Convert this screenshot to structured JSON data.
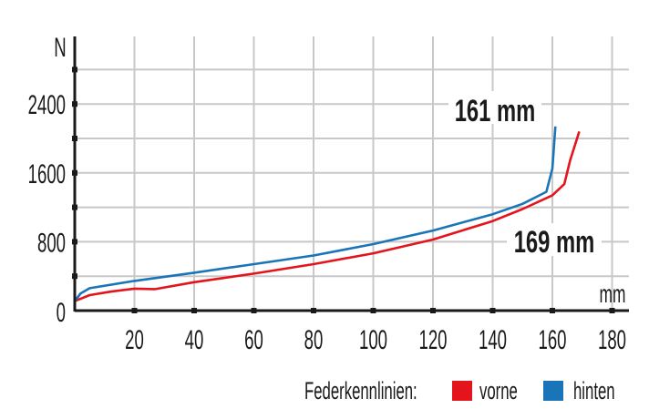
{
  "chart_data": {
    "type": "line",
    "title": "",
    "xlabel": "mm",
    "ylabel": "N",
    "xlim": [
      0,
      185
    ],
    "ylim": [
      0,
      2900
    ],
    "x_ticks": [
      20,
      40,
      60,
      80,
      100,
      120,
      140,
      160,
      180
    ],
    "y_ticks": [
      0,
      800,
      1600,
      2400
    ],
    "y_minor_ticks": [
      400,
      1200,
      2000,
      2800
    ],
    "grid": true,
    "legend_title": "Federkennlinien:",
    "legend_position": "bottom-right",
    "series": [
      {
        "name": "vorne",
        "color": "#e3141c",
        "points": [
          [
            0,
            0
          ],
          [
            0,
            110
          ],
          [
            5,
            180
          ],
          [
            12,
            220
          ],
          [
            20,
            255
          ],
          [
            27,
            250
          ],
          [
            40,
            330
          ],
          [
            60,
            430
          ],
          [
            80,
            540
          ],
          [
            100,
            666
          ],
          [
            120,
            825
          ],
          [
            140,
            1040
          ],
          [
            150,
            1180
          ],
          [
            160,
            1340
          ],
          [
            164,
            1470
          ],
          [
            166,
            1750
          ],
          [
            169,
            2080
          ]
        ]
      },
      {
        "name": "hinten",
        "color": "#1a75b8",
        "points": [
          [
            0,
            0
          ],
          [
            0,
            110
          ],
          [
            2,
            200
          ],
          [
            5,
            260
          ],
          [
            20,
            345
          ],
          [
            40,
            440
          ],
          [
            60,
            540
          ],
          [
            80,
            640
          ],
          [
            100,
            772
          ],
          [
            120,
            930
          ],
          [
            140,
            1120
          ],
          [
            150,
            1240
          ],
          [
            158,
            1380
          ],
          [
            160,
            1650
          ],
          [
            161,
            2140
          ]
        ]
      }
    ],
    "annotations": [
      {
        "text": "161 mm",
        "series": "hinten"
      },
      {
        "text": "169 mm",
        "series": "vorne"
      }
    ]
  }
}
